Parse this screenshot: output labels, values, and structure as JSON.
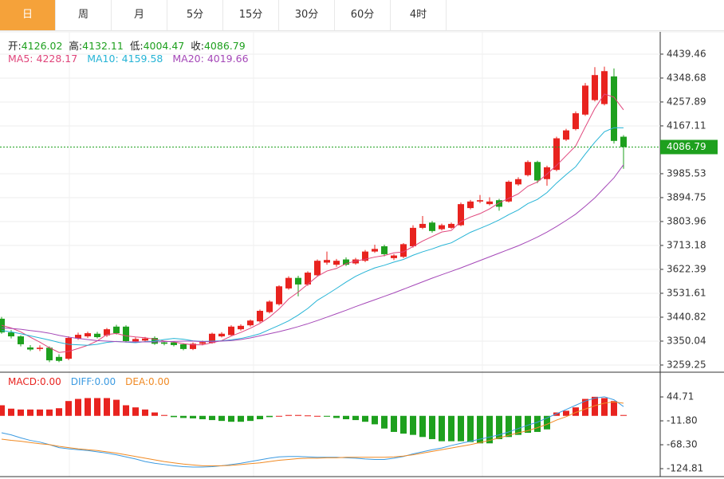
{
  "tabs": [
    "日",
    "周",
    "月",
    "5分",
    "15分",
    "30分",
    "60分",
    "4时"
  ],
  "active_tab": 0,
  "chart_data": [
    {
      "type": "candlestick",
      "up_color": "#e8231f",
      "down_color": "#1ea01e",
      "categories": [
        null,
        null,
        null,
        null,
        null,
        null,
        null,
        null,
        null,
        null,
        null,
        null,
        null,
        null,
        null,
        null,
        null,
        null,
        null,
        null,
        null,
        null,
        null,
        null,
        null,
        null,
        null,
        null,
        null,
        null,
        null,
        null,
        null,
        null,
        null,
        null,
        null,
        null,
        null,
        null,
        null,
        null,
        null,
        null,
        null,
        null,
        null,
        null,
        null,
        null,
        null,
        null,
        null,
        null,
        null,
        null,
        null,
        null,
        null,
        null,
        null,
        null,
        null,
        null,
        null,
        null
      ],
      "open": [
        3435,
        3383,
        3368,
        3326,
        3320,
        3325,
        3290,
        3283,
        3360,
        3368,
        3378,
        3372,
        3405,
        3405,
        3349,
        3352,
        3362,
        3345,
        3345,
        3338,
        3320,
        3340,
        3343,
        3368,
        3373,
        3395,
        3410,
        3425,
        3460,
        3490,
        3550,
        3590,
        3565,
        3600,
        3648,
        3640,
        3660,
        3645,
        3655,
        3690,
        3710,
        3665,
        3670,
        3710,
        3780,
        3800,
        3775,
        3780,
        3790,
        3855,
        3880,
        3870,
        3885,
        3880,
        3945,
        3980,
        4030,
        3965,
        4000,
        4115,
        4155,
        4210,
        4265,
        4250,
        4355,
        4126.02
      ],
      "high": [
        3442,
        3392,
        3372,
        3335,
        3334,
        3330,
        3300,
        3368,
        3382,
        3386,
        3385,
        3400,
        3412,
        3410,
        3364,
        3366,
        3368,
        3350,
        3350,
        3342,
        3345,
        3352,
        3382,
        3384,
        3410,
        3414,
        3432,
        3470,
        3505,
        3562,
        3596,
        3598,
        3615,
        3660,
        3690,
        3662,
        3668,
        3666,
        3696,
        3716,
        3716,
        3680,
        3722,
        3790,
        3825,
        3806,
        3796,
        3800,
        3876,
        3886,
        3905,
        3896,
        3890,
        3960,
        3972,
        4036,
        4035,
        4016,
        4126,
        4156,
        4222,
        4330,
        4390,
        4392,
        4385,
        4132.11
      ],
      "low": [
        3378,
        3360,
        3330,
        3312,
        3312,
        3270,
        3270,
        3278,
        3355,
        3362,
        3360,
        3366,
        3375,
        3345,
        3344,
        3348,
        3336,
        3334,
        3330,
        3315,
        3316,
        3334,
        3340,
        3364,
        3370,
        3390,
        3405,
        3420,
        3455,
        3485,
        3545,
        3520,
        3560,
        3595,
        3640,
        3632,
        3635,
        3640,
        3650,
        3685,
        3672,
        3658,
        3665,
        3705,
        3775,
        3762,
        3770,
        3776,
        3786,
        3850,
        3874,
        3865,
        3845,
        3876,
        3940,
        3975,
        3950,
        3940,
        3995,
        4110,
        4150,
        4205,
        4260,
        4245,
        4100,
        4004.47
      ],
      "close": [
        3383,
        3368,
        3338,
        3318,
        3325,
        3277,
        3275,
        3362,
        3374,
        3380,
        3365,
        3395,
        3380,
        3350,
        3358,
        3360,
        3340,
        3340,
        3335,
        3320,
        3340,
        3346,
        3378,
        3378,
        3405,
        3408,
        3428,
        3465,
        3500,
        3558,
        3590,
        3565,
        3610,
        3655,
        3658,
        3655,
        3640,
        3660,
        3690,
        3700,
        3680,
        3675,
        3718,
        3780,
        3795,
        3768,
        3790,
        3795,
        3870,
        3880,
        3885,
        3880,
        3860,
        3955,
        3965,
        4030,
        3960,
        4010,
        4120,
        4150,
        4215,
        4320,
        4360,
        4375,
        4110,
        4086.79
      ],
      "ohlc_labels": [
        "开:",
        "高:",
        "低:",
        "收:"
      ],
      "series": [
        {
          "name": "MA5:",
          "color": "#e0457b",
          "values": [
            3410,
            3400,
            3385,
            3365,
            3346,
            3325,
            3307,
            3311,
            3322,
            3334,
            3351,
            3375,
            3379,
            3370,
            3366,
            3363,
            3357,
            3350,
            3347,
            3340,
            3336,
            3336,
            3344,
            3352,
            3369,
            3383,
            3399,
            3417,
            3441,
            3472,
            3510,
            3536,
            3566,
            3596,
            3616,
            3626,
            3644,
            3654,
            3661,
            3669,
            3675,
            3685,
            3689,
            3709,
            3730,
            3747,
            3764,
            3770,
            3804,
            3821,
            3834,
            3852,
            3875,
            3892,
            3909,
            3938,
            3954,
            3984,
            4017,
            4054,
            4091,
            4163,
            4233,
            4288,
            4276,
            4228.17
          ]
        },
        {
          "name": "MA10:",
          "color": "#26b4d6",
          "values": [
            3390,
            3385,
            3378,
            3370,
            3362,
            3354,
            3345,
            3338,
            3336,
            3334,
            3338,
            3345,
            3349,
            3346,
            3344,
            3348,
            3350,
            3356,
            3360,
            3357,
            3351,
            3349,
            3350,
            3351,
            3355,
            3360,
            3368,
            3378,
            3394,
            3410,
            3427,
            3449,
            3474,
            3505,
            3527,
            3550,
            3574,
            3596,
            3613,
            3628,
            3638,
            3650,
            3660,
            3676,
            3689,
            3700,
            3713,
            3723,
            3743,
            3763,
            3778,
            3793,
            3810,
            3830,
            3848,
            3872,
            3888,
            3914,
            3950,
            3982,
            4012,
            4060,
            4105,
            4145,
            4160,
            4159.58
          ]
        },
        {
          "name": "MA20:",
          "color": "#a548b8",
          "values": [
            3400,
            3398,
            3395,
            3390,
            3386,
            3380,
            3372,
            3365,
            3360,
            3356,
            3352,
            3350,
            3348,
            3347,
            3347,
            3347,
            3347,
            3348,
            3349,
            3350,
            3350,
            3348,
            3348,
            3350,
            3352,
            3356,
            3362,
            3370,
            3378,
            3386,
            3395,
            3405,
            3416,
            3428,
            3441,
            3454,
            3467,
            3481,
            3494,
            3507,
            3520,
            3533,
            3547,
            3561,
            3575,
            3589,
            3602,
            3615,
            3628,
            3642,
            3656,
            3670,
            3684,
            3698,
            3712,
            3728,
            3745,
            3764,
            3785,
            3808,
            3832,
            3862,
            3894,
            3932,
            3970,
            4019.66
          ]
        }
      ],
      "ylim": [
        3238,
        4524
      ],
      "yticks": [
        3259.25,
        3350.04,
        3440.82,
        3531.61,
        3622.39,
        3713.18,
        3803.96,
        3894.75,
        3985.53,
        4167.11,
        4257.89,
        4348.68,
        4439.46
      ],
      "grid": true
    },
    {
      "type": "macd",
      "up_color": "#e8231f",
      "down_color": "#1ea01e",
      "categories": [
        null,
        null,
        null,
        null,
        null,
        null,
        null,
        null,
        null,
        null,
        null,
        null,
        null,
        null,
        null,
        null,
        null,
        null,
        null,
        null,
        null,
        null,
        null,
        null,
        null,
        null,
        null,
        null,
        null,
        null,
        null,
        null,
        null,
        null,
        null,
        null,
        null,
        null,
        null,
        null,
        null,
        null,
        null,
        null,
        null,
        null,
        null,
        null,
        null,
        null,
        null,
        null,
        null,
        null,
        null,
        null,
        null,
        null,
        null,
        null,
        null,
        null,
        null,
        null,
        null,
        null
      ],
      "values": [
        25,
        17,
        15,
        15,
        15,
        15,
        18,
        35,
        40,
        42,
        42,
        42,
        38,
        25,
        20,
        15,
        8,
        2,
        -3,
        -5,
        -6,
        -8,
        -10,
        -12,
        -14,
        -14,
        -12,
        -8,
        -3,
        0,
        2,
        2,
        1,
        0,
        -2,
        -5,
        -8,
        -10,
        -14,
        -20,
        -30,
        -38,
        -42,
        -45,
        -50,
        -55,
        -60,
        -60,
        -60,
        -62,
        -65,
        -65,
        -55,
        -50,
        -45,
        -40,
        -38,
        -32,
        8,
        12,
        20,
        40,
        45,
        42,
        35,
        2
      ],
      "bar_label": {
        "name": "MACD:",
        "value": "0.00"
      },
      "series": [
        {
          "name": "DIFF:",
          "value_label": "0.00",
          "color": "#3b9ae1",
          "values": [
            -40,
            -45,
            -52,
            -58,
            -62,
            -68,
            -75,
            -78,
            -80,
            -82,
            -85,
            -88,
            -92,
            -97,
            -102,
            -108,
            -112,
            -115,
            -118,
            -120,
            -121,
            -121,
            -120,
            -118,
            -115,
            -112,
            -108,
            -104,
            -100,
            -97,
            -96,
            -96,
            -97,
            -98,
            -98,
            -98,
            -99,
            -100,
            -102,
            -103,
            -103,
            -100,
            -96,
            -90,
            -85,
            -80,
            -76,
            -70,
            -65,
            -60,
            -55,
            -50,
            -45,
            -38,
            -30,
            -22,
            -15,
            -5,
            5,
            15,
            25,
            35,
            42,
            45,
            38,
            22
          ]
        },
        {
          "name": "DEA:",
          "value_label": "0.00",
          "color": "#f08a24",
          "values": [
            -55,
            -58,
            -60,
            -63,
            -66,
            -68,
            -72,
            -75,
            -78,
            -80,
            -82,
            -85,
            -88,
            -92,
            -96,
            -100,
            -104,
            -108,
            -111,
            -114,
            -116,
            -118,
            -118,
            -118,
            -117,
            -115,
            -113,
            -111,
            -108,
            -105,
            -103,
            -101,
            -100,
            -100,
            -99,
            -99,
            -98,
            -98,
            -98,
            -98,
            -98,
            -97,
            -95,
            -92,
            -88,
            -84,
            -80,
            -76,
            -72,
            -68,
            -63,
            -58,
            -52,
            -46,
            -40,
            -35,
            -28,
            -20,
            -10,
            -2,
            8,
            16,
            24,
            30,
            33,
            30
          ]
        }
      ],
      "ylim": [
        -143.6,
        97.5
      ],
      "yticks": [
        {
          "value": -124.81,
          "label": "-124.81"
        },
        {
          "value": -68.3,
          "label": "-68.30"
        },
        {
          "value": -11.8,
          "label": "-11.80"
        },
        44.71
      ]
    }
  ]
}
